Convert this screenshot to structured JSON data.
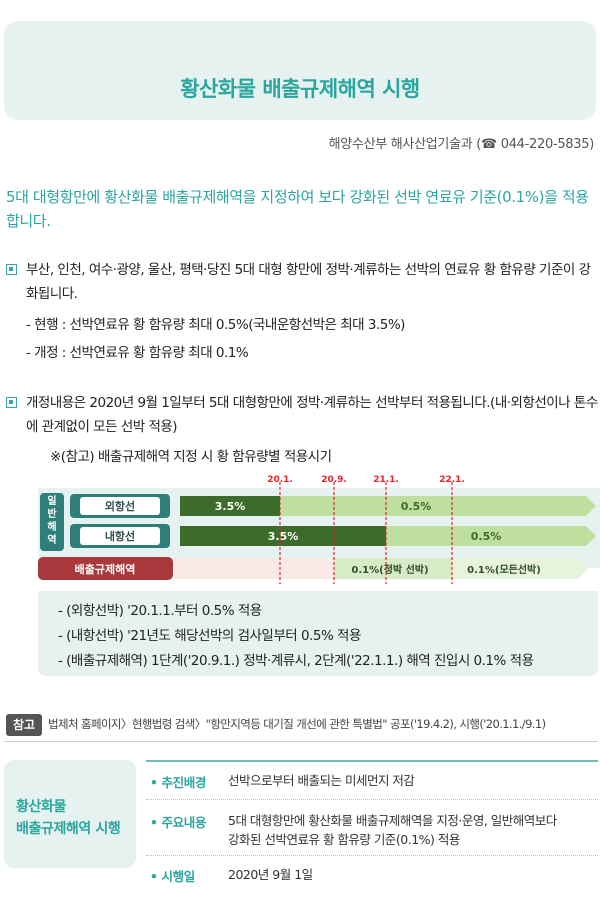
{
  "header": {
    "title": "황산화물 배출규제해역 시행",
    "department": "해양수산부 해사산업기술과 (☎ 044-220-5835)"
  },
  "lead": "5대 대형항만에 황산화물 배출규제해역을 지정하여 보다 강화된 선박 연료유 기준(0.1%)을 적용합니다.",
  "section1": {
    "text": "부산, 인천, 여수·광양, 울산, 평택·당진 5대 대형 항만에 정박·계류하는 선박의 연료유 황 함유량 기준이 강화됩니다.",
    "items": [
      "- 현행 : 선박연료유 황 함유량 최대 0.5%(국내운항선박은 최대 3.5%)",
      "- 개정 : 선박연료유 황 함유량 최대 0.1%"
    ]
  },
  "section2": {
    "text": "개정내용은 2020년 9월 1일부터 5대 대형항만에 정박·계류하는 선박부터 적용됩니다.(내·외항선이나 톤수에 관계없이 모든 선박 적용)",
    "note": "※(참고) 배출규제해역 지정 시 황 함유량별 적용시기"
  },
  "timeline": {
    "group_label": [
      "일",
      "반",
      "해",
      "역"
    ],
    "dates": [
      "20.1.",
      "20.9.",
      "21.1.",
      "22.1."
    ],
    "rows": [
      {
        "label": "외항선",
        "current_value": "3.5%",
        "next_value": "0.5%"
      },
      {
        "label": "내항선",
        "current_value": "3.5%",
        "next_value": "0.5%"
      }
    ],
    "eca_label": "배출규제해역",
    "eca_stage1": "0.1%(정박 선박)",
    "eca_stage2": "0.1%(모든선박)",
    "colors": {
      "dark": "#3d6b2c",
      "light": "#bfdf9e",
      "red": "#e8202a",
      "eca": "#a8383c"
    }
  },
  "timeline_notes": [
    "- (외항선박) '20.1.1.부터 0.5% 적용",
    "- (내항선박) '21년도 해당선박의 검사일부터 0.5% 적용",
    "- (배출규제해역) 1단계('20.9.1.) 정박·계류시, 2단계('22.1.1.) 해역 진입시 0.1% 적용"
  ],
  "reference": {
    "badge": "참고",
    "text": "법제처 홈페이지〉현행법령 검색〉\"항만지역등 대기질 개선에 관한 특별법\" 공포('19.4.2), 시행('20.1.1./9.1)"
  },
  "summary": {
    "title_line1": "황산화물",
    "title_line2": "배출규제해역 시행",
    "rows": [
      {
        "label": "• 추진배경",
        "value_lines": [
          "선박으로부터 배출되는 미세먼지 저감"
        ]
      },
      {
        "label": "• 주요내용",
        "value_lines": [
          "5대 대형항만에 황산화물 배출규제해역을 지정·운영, 일반해역보다",
          "강화된 선박연료유 황 함유량 기준(0.1%) 적용"
        ]
      },
      {
        "label": "• 시행일",
        "value_lines": [
          "2020년 9월 1일"
        ]
      }
    ]
  },
  "accent_color": "#2ba59f"
}
